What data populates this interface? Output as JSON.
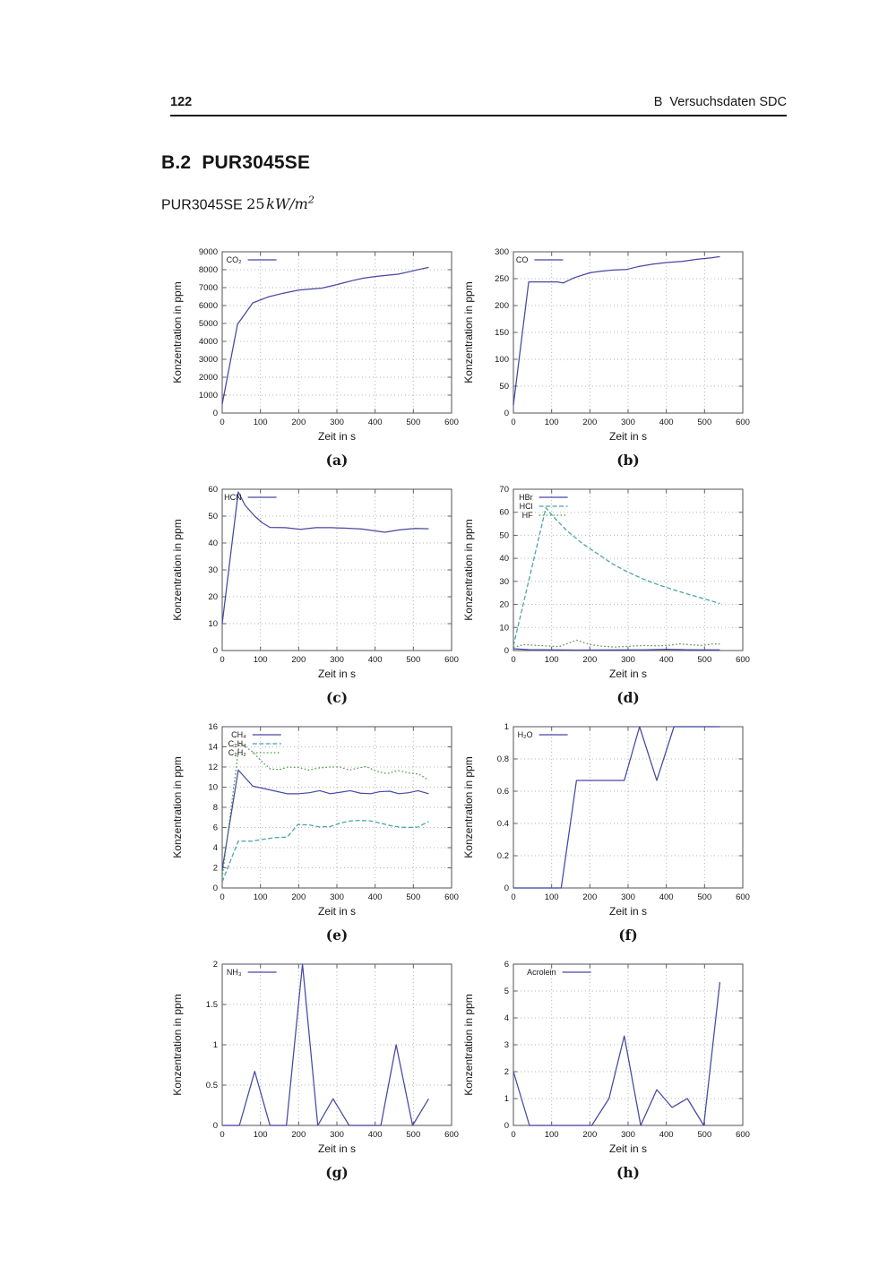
{
  "page": {
    "header": {
      "page_number": "122",
      "section": "B  Versuchsdaten SDC"
    },
    "title": "B.2  PUR3045SE",
    "subtitle": {
      "name": "PUR3045SE",
      "value": "25",
      "unit": "kW/m",
      "exp": "2"
    }
  },
  "colors": {
    "navy": "#4747a3",
    "teal": "#49a2a2",
    "green": "#4e964e",
    "grid": "#b5b5b5",
    "border": "#60606a",
    "text": "#161616"
  },
  "chart_data": [
    {
      "id": "a",
      "caption": "(a)",
      "type": "line",
      "xlabel": "Zeit in s",
      "ylabel": "Konzentration in ppm",
      "xlim": [
        0,
        600
      ],
      "xstep": 100,
      "ylim": [
        0,
        9000
      ],
      "ystep": 1000,
      "grid": true,
      "legend_position": "top-left",
      "series": [
        {
          "name": "CO₂",
          "style": "solid",
          "color": "navy",
          "points": [
            [
              0,
              500
            ],
            [
              40,
              4950
            ],
            [
              80,
              6150
            ],
            [
              120,
              6480
            ],
            [
              160,
              6690
            ],
            [
              200,
              6860
            ],
            [
              230,
              6920
            ],
            [
              260,
              6970
            ],
            [
              300,
              7170
            ],
            [
              340,
              7390
            ],
            [
              370,
              7530
            ],
            [
              400,
              7620
            ],
            [
              430,
              7690
            ],
            [
              460,
              7750
            ],
            [
              490,
              7890
            ],
            [
              520,
              8040
            ],
            [
              540,
              8130
            ]
          ]
        }
      ]
    },
    {
      "id": "b",
      "caption": "(b)",
      "type": "line",
      "xlabel": "Zeit in s",
      "ylabel": "Konzentration in ppm",
      "xlim": [
        0,
        600
      ],
      "xstep": 100,
      "ylim": [
        0,
        300
      ],
      "ystep": 50,
      "grid": true,
      "legend_position": "top-left",
      "series": [
        {
          "name": "CO",
          "style": "solid",
          "color": "navy",
          "points": [
            [
              0,
              15
            ],
            [
              40,
              244
            ],
            [
              80,
              244
            ],
            [
              115,
              244
            ],
            [
              130,
              242
            ],
            [
              160,
              252
            ],
            [
              200,
              261
            ],
            [
              230,
              264
            ],
            [
              260,
              266
            ],
            [
              295,
              267
            ],
            [
              330,
              273
            ],
            [
              365,
              277
            ],
            [
              400,
              280
            ],
            [
              440,
              282
            ],
            [
              480,
              286
            ],
            [
              520,
              289
            ],
            [
              540,
              291
            ]
          ]
        }
      ]
    },
    {
      "id": "c",
      "caption": "(c)",
      "type": "line",
      "xlabel": "Zeit in s",
      "ylabel": "Konzentration in ppm",
      "xlim": [
        0,
        600
      ],
      "xstep": 100,
      "ylim": [
        0,
        60
      ],
      "ystep": 10,
      "grid": true,
      "legend_position": "top-left",
      "series": [
        {
          "name": "HCN",
          "style": "solid",
          "color": "navy",
          "points": [
            [
              0,
              10
            ],
            [
              42,
              59
            ],
            [
              60,
              54
            ],
            [
              85,
              50
            ],
            [
              105,
              47.5
            ],
            [
              125,
              45.8
            ],
            [
              165,
              45.7
            ],
            [
              205,
              45.1
            ],
            [
              245,
              45.7
            ],
            [
              285,
              45.7
            ],
            [
              325,
              45.5
            ],
            [
              365,
              45.2
            ],
            [
              405,
              44.4
            ],
            [
              425,
              44
            ],
            [
              465,
              44.9
            ],
            [
              505,
              45.4
            ],
            [
              540,
              45.3
            ]
          ]
        }
      ]
    },
    {
      "id": "d",
      "caption": "(d)",
      "type": "line",
      "xlabel": "Zeit in s",
      "ylabel": "Konzentration in ppm",
      "xlim": [
        0,
        600
      ],
      "xstep": 100,
      "ylim": [
        0,
        70
      ],
      "ystep": 10,
      "grid": true,
      "legend_position": "top-left",
      "series": [
        {
          "name": "HBr",
          "style": "solid",
          "color": "navy",
          "points": [
            [
              0,
              0.8
            ],
            [
              40,
              0.4
            ],
            [
              100,
              0.3
            ],
            [
              160,
              0.2
            ],
            [
              220,
              0.25
            ],
            [
              280,
              0.3
            ],
            [
              340,
              0.3
            ],
            [
              400,
              0.55
            ],
            [
              450,
              0.35
            ],
            [
              500,
              0.3
            ],
            [
              540,
              0.3
            ]
          ]
        },
        {
          "name": "HCl",
          "style": "dashed",
          "color": "teal",
          "points": [
            [
              0,
              2
            ],
            [
              85,
              62
            ],
            [
              105,
              58
            ],
            [
              140,
              52
            ],
            [
              180,
              46.5
            ],
            [
              220,
              42
            ],
            [
              260,
              37.5
            ],
            [
              300,
              34
            ],
            [
              340,
              31
            ],
            [
              380,
              28.5
            ],
            [
              420,
              26.3
            ],
            [
              460,
              24.3
            ],
            [
              500,
              22.4
            ],
            [
              540,
              20.4
            ]
          ]
        },
        {
          "name": "HF",
          "style": "dotted",
          "color": "green",
          "points": [
            [
              0,
              1.4
            ],
            [
              30,
              2.6
            ],
            [
              55,
              2.3
            ],
            [
              85,
              2
            ],
            [
              120,
              1.7
            ],
            [
              165,
              4.5
            ],
            [
              200,
              2.6
            ],
            [
              235,
              1.8
            ],
            [
              265,
              1.5
            ],
            [
              300,
              1.8
            ],
            [
              340,
              2.2
            ],
            [
              375,
              2
            ],
            [
              410,
              2.3
            ],
            [
              435,
              2.9
            ],
            [
              465,
              2.5
            ],
            [
              495,
              2.2
            ],
            [
              520,
              2.9
            ],
            [
              540,
              2.8
            ]
          ]
        }
      ]
    },
    {
      "id": "e",
      "caption": "(e)",
      "type": "line",
      "xlabel": "Zeit in s",
      "ylabel": "Konzentration in ppm",
      "xlim": [
        0,
        600
      ],
      "xstep": 100,
      "ylim": [
        0,
        16
      ],
      "ystep": 2,
      "grid": true,
      "legend_position": "top-left",
      "series": [
        {
          "name": "CH₄",
          "style": "solid",
          "color": "navy",
          "points": [
            [
              0,
              1.8
            ],
            [
              42,
              11.7
            ],
            [
              80,
              10.1
            ],
            [
              105,
              9.9
            ],
            [
              140,
              9.6
            ],
            [
              170,
              9.35
            ],
            [
              200,
              9.35
            ],
            [
              228,
              9.45
            ],
            [
              255,
              9.65
            ],
            [
              283,
              9.35
            ],
            [
              310,
              9.5
            ],
            [
              335,
              9.65
            ],
            [
              362,
              9.4
            ],
            [
              388,
              9.35
            ],
            [
              412,
              9.55
            ],
            [
              438,
              9.6
            ],
            [
              462,
              9.35
            ],
            [
              488,
              9.45
            ],
            [
              512,
              9.65
            ],
            [
              540,
              9.35
            ]
          ]
        },
        {
          "name": "C₂H₄",
          "style": "dashed",
          "color": "teal",
          "points": [
            [
              0,
              0.6
            ],
            [
              42,
              4.65
            ],
            [
              80,
              4.65
            ],
            [
              110,
              4.85
            ],
            [
              140,
              5
            ],
            [
              170,
              5.05
            ],
            [
              198,
              6.3
            ],
            [
              228,
              6.25
            ],
            [
              255,
              6.05
            ],
            [
              283,
              6.1
            ],
            [
              310,
              6.45
            ],
            [
              335,
              6.65
            ],
            [
              362,
              6.7
            ],
            [
              388,
              6.65
            ],
            [
              412,
              6.45
            ],
            [
              438,
              6.2
            ],
            [
              462,
              6.05
            ],
            [
              488,
              6
            ],
            [
              512,
              6.05
            ],
            [
              540,
              6.6
            ]
          ]
        },
        {
          "name": "C₂H₂",
          "style": "dotted",
          "color": "green",
          "points": [
            [
              0,
              1
            ],
            [
              45,
              14.4
            ],
            [
              80,
              13.5
            ],
            [
              102,
              12.6
            ],
            [
              126,
              11.8
            ],
            [
              150,
              11.75
            ],
            [
              172,
              12
            ],
            [
              200,
              11.95
            ],
            [
              226,
              11.7
            ],
            [
              252,
              11.9
            ],
            [
              282,
              12
            ],
            [
              308,
              12
            ],
            [
              332,
              11.7
            ],
            [
              356,
              11.9
            ],
            [
              376,
              12.05
            ],
            [
              402,
              11.6
            ],
            [
              430,
              11.35
            ],
            [
              460,
              11.65
            ],
            [
              490,
              11.4
            ],
            [
              514,
              11.3
            ],
            [
              540,
              10.7
            ]
          ]
        }
      ]
    },
    {
      "id": "f",
      "caption": "(f)",
      "type": "line",
      "xlabel": "Zeit in s",
      "ylabel": "Konzentration in ppm",
      "xlim": [
        0,
        600
      ],
      "xstep": 100,
      "ylim": [
        0,
        1
      ],
      "ystep": 0.2,
      "grid": true,
      "legend_position": "top-left",
      "series": [
        {
          "name": "H₂O",
          "style": "solid",
          "color": "navy",
          "points": [
            [
              0,
              0
            ],
            [
              125,
              0
            ],
            [
              165,
              0.667
            ],
            [
              290,
              0.667
            ],
            [
              330,
              1
            ],
            [
              375,
              0.667
            ],
            [
              420,
              1
            ],
            [
              540,
              1
            ]
          ]
        }
      ]
    },
    {
      "id": "g",
      "caption": "(g)",
      "type": "line",
      "xlabel": "Zeit in s",
      "ylabel": "Konzentration in ppm",
      "xlim": [
        0,
        600
      ],
      "xstep": 100,
      "ylim": [
        0,
        2
      ],
      "ystep": 0.5,
      "grid": true,
      "legend_position": "top-left",
      "series": [
        {
          "name": "NH₃",
          "style": "solid",
          "color": "navy",
          "points": [
            [
              0,
              0
            ],
            [
              45,
              0
            ],
            [
              85,
              0.67
            ],
            [
              125,
              0
            ],
            [
              168,
              0
            ],
            [
              210,
              2
            ],
            [
              250,
              0
            ],
            [
              290,
              0.33
            ],
            [
              332,
              0
            ],
            [
              415,
              0
            ],
            [
              455,
              1
            ],
            [
              498,
              0
            ],
            [
              540,
              0.33
            ]
          ]
        }
      ]
    },
    {
      "id": "h",
      "caption": "(h)",
      "type": "line",
      "xlabel": "Zeit in s",
      "ylabel": "Konzentration in ppm",
      "xlim": [
        0,
        600
      ],
      "xstep": 100,
      "ylim": [
        0,
        6
      ],
      "ystep": 1,
      "grid": true,
      "legend_position": "top-left",
      "series": [
        {
          "name": "Acrolein",
          "style": "solid",
          "color": "navy",
          "points": [
            [
              0,
              2
            ],
            [
              42,
              0
            ],
            [
              205,
              0
            ],
            [
              250,
              1
            ],
            [
              290,
              3.33
            ],
            [
              333,
              0
            ],
            [
              375,
              1.33
            ],
            [
              415,
              0.67
            ],
            [
              455,
              1
            ],
            [
              498,
              0
            ],
            [
              540,
              5.33
            ]
          ]
        }
      ]
    }
  ]
}
